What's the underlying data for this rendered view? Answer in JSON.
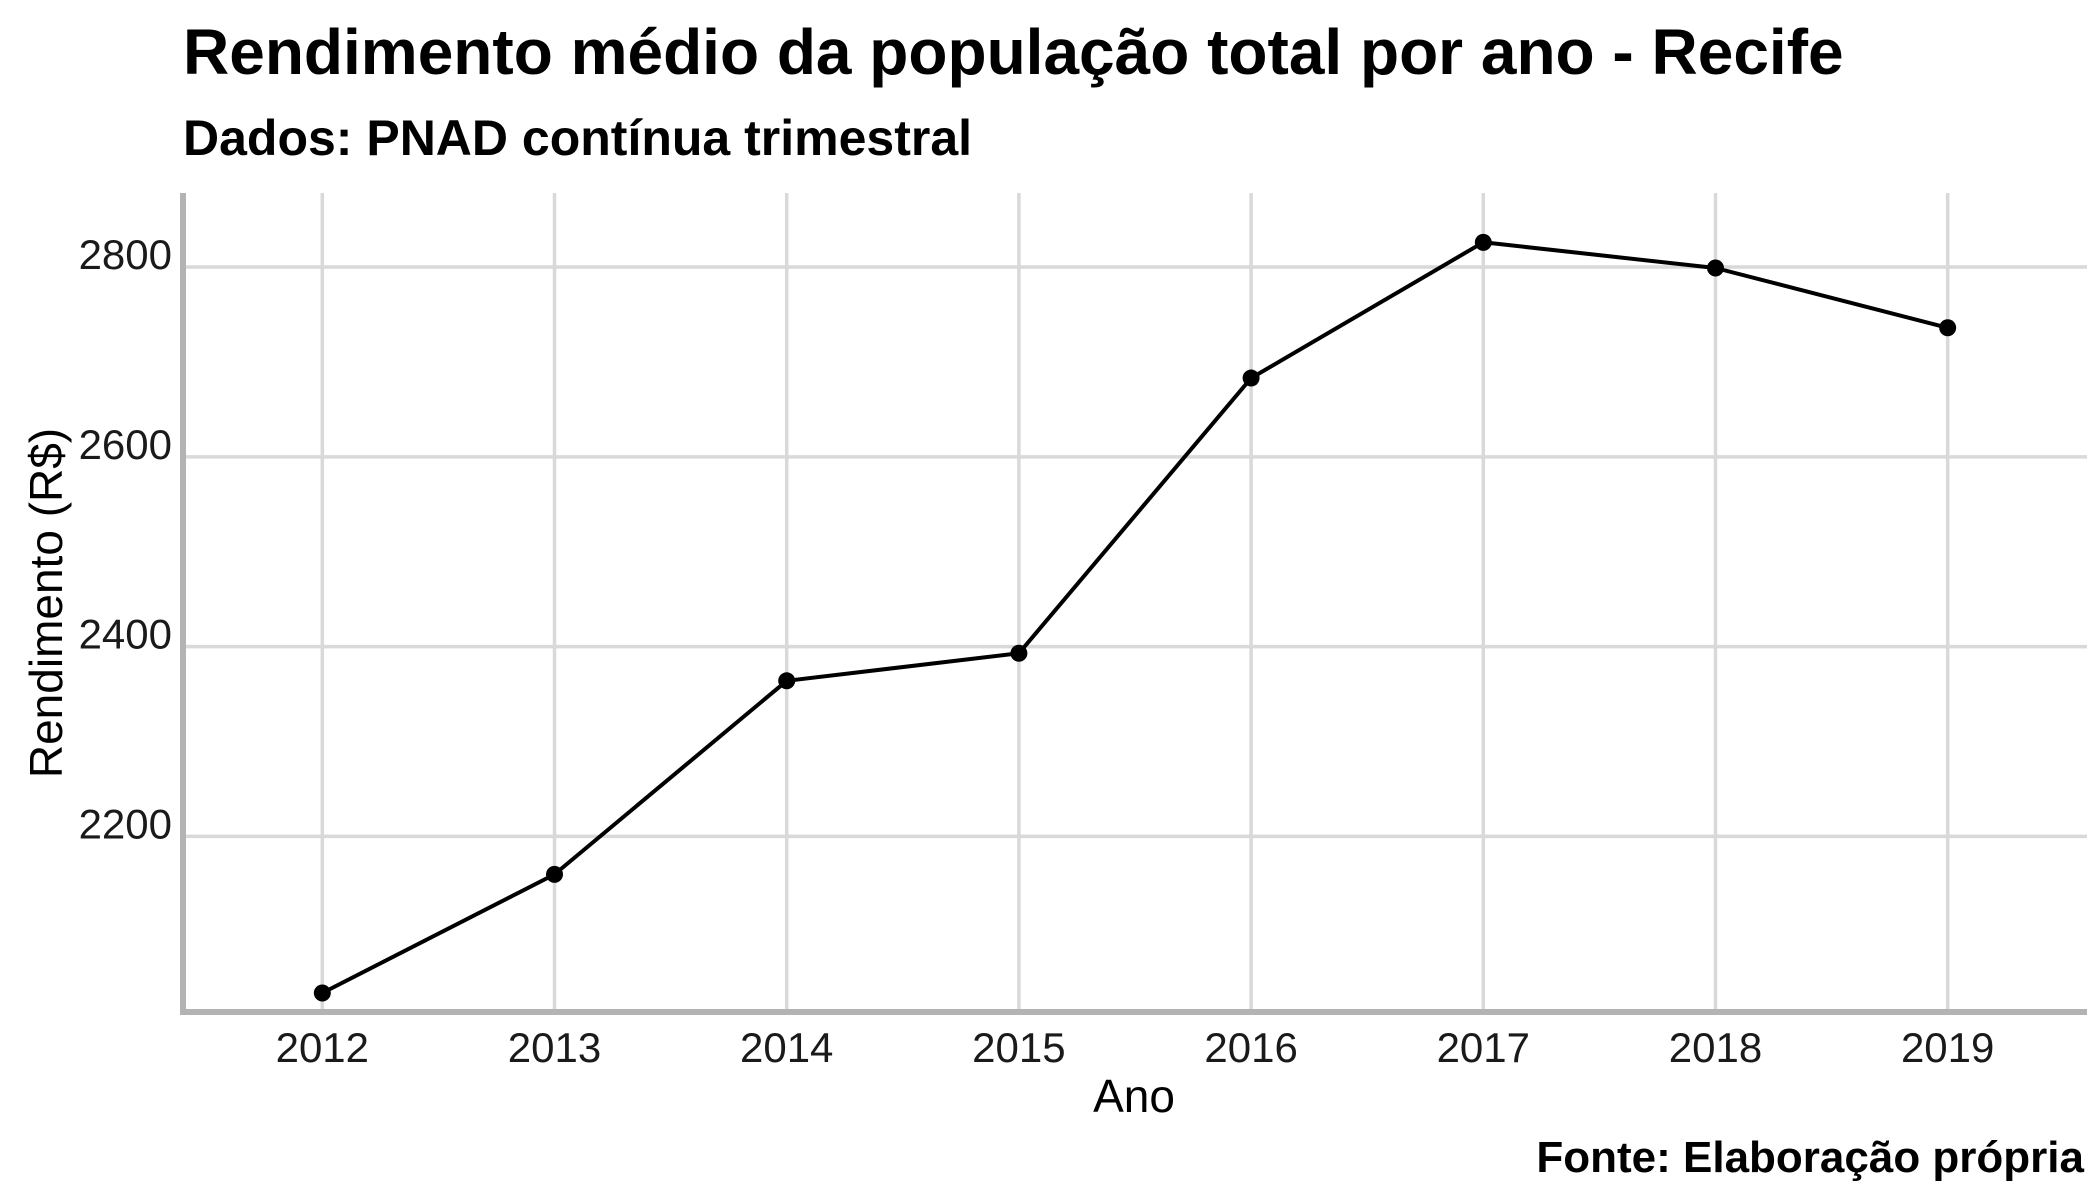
{
  "chart_data": {
    "type": "line",
    "title": "Rendimento médio da população total por ano - Recife",
    "subtitle": "Dados: PNAD contínua trimestral",
    "caption": "Fonte: Elaboração própria",
    "xlabel": "Ano",
    "ylabel": "Rendimento (R$)",
    "x": [
      2012,
      2013,
      2014,
      2015,
      2016,
      2017,
      2018,
      2019
    ],
    "xticks": [
      "2012",
      "2013",
      "2014",
      "2015",
      "2016",
      "2017",
      "2018",
      "2019"
    ],
    "yticks": [
      2200,
      2400,
      2600,
      2800
    ],
    "ylim": [
      2015,
      2878
    ],
    "xlim": [
      2011.4,
      2019.6
    ],
    "grid": true,
    "series": [
      {
        "values": [
          2035,
          2160,
          2364,
          2393,
          2683,
          2826,
          2799,
          2736
        ]
      }
    ],
    "colors": {
      "line": "#000000",
      "grid": "#d9d9d9",
      "axis": "#b3b3b3"
    }
  }
}
